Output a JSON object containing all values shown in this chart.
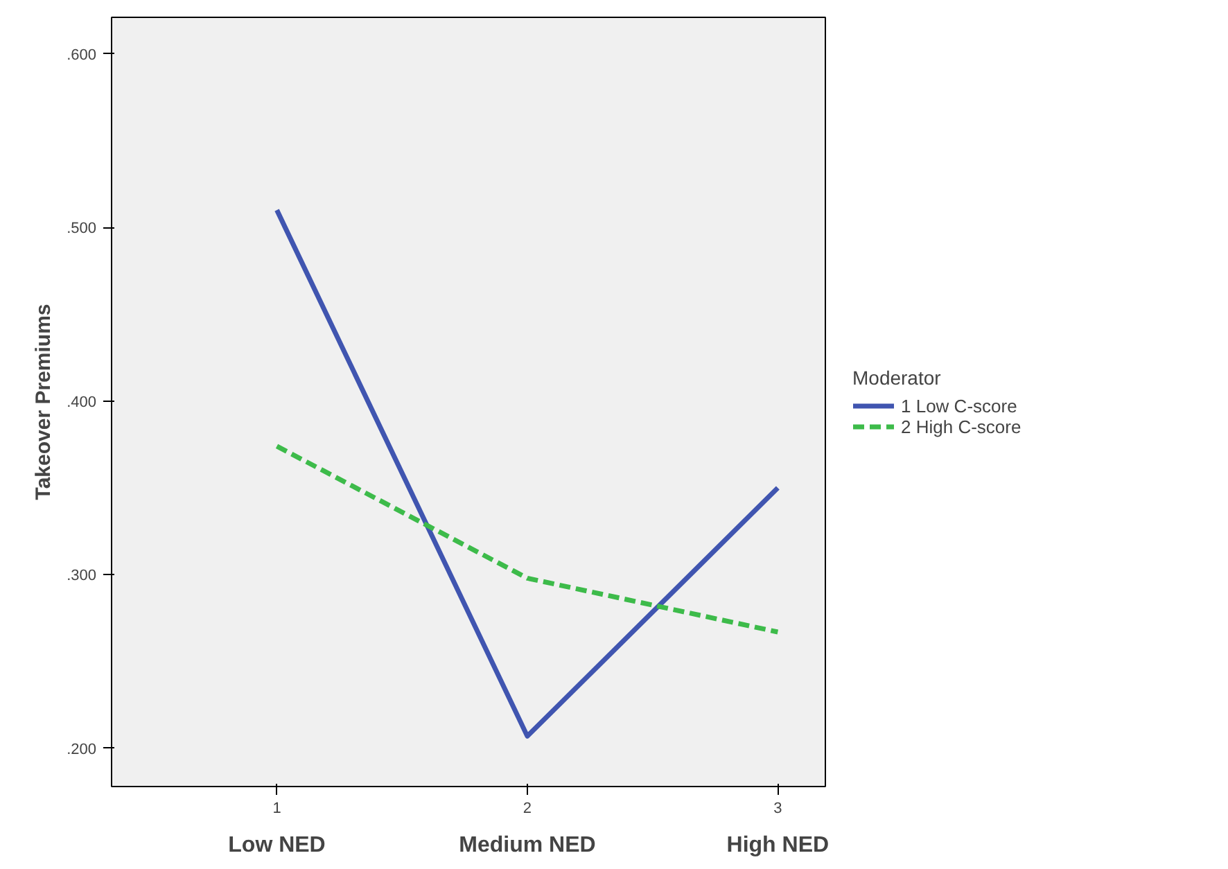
{
  "chart_data": {
    "type": "line",
    "ylabel": "Takeover Premiums",
    "legend_title": "Moderator",
    "x": [
      1,
      2,
      3
    ],
    "series": [
      {
        "name": "1 Low C-score",
        "color": "#4055b0",
        "values": [
          0.51,
          0.207,
          0.35
        ],
        "line_style": "solid"
      },
      {
        "name": "2 High C-score",
        "color": "#3dbb4a",
        "values": [
          0.374,
          0.298,
          0.267
        ],
        "line_style": "dashed"
      }
    ],
    "xlim": [
      0.34,
      3.19
    ],
    "xticks": [
      1,
      2,
      3
    ],
    "ylim": [
      0.178,
      0.621
    ],
    "yticks": [
      {
        "value": 0.2,
        "label": ".200"
      },
      {
        "value": 0.3,
        "label": ".300"
      },
      {
        "value": 0.4,
        "label": ".400"
      },
      {
        "value": 0.5,
        "label": ".500"
      },
      {
        "value": 0.6,
        "label": ".600"
      }
    ],
    "annotations": [
      "Low NED",
      "Medium NED",
      "High NED"
    ],
    "grid": false,
    "legend": "right",
    "marker": "none"
  }
}
